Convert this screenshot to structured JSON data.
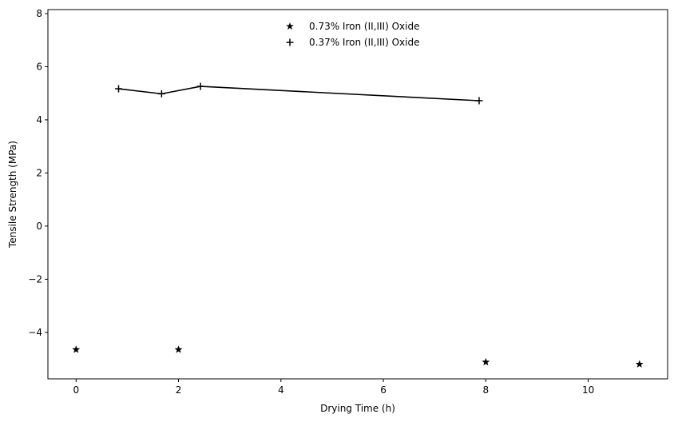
{
  "chart_data": {
    "type": "scatter",
    "xlabel": "Drying Time (h)",
    "ylabel": "Tensile Strength (MPa)",
    "xlim": [
      -0.55,
      11.55
    ],
    "ylim": [
      -5.75,
      8.15
    ],
    "xticks": [
      0,
      2,
      4,
      6,
      8,
      10
    ],
    "yticks": [
      -4,
      -2,
      0,
      2,
      4,
      6,
      8
    ],
    "xtick_labels": [
      "0",
      "2",
      "4",
      "6",
      "8",
      "10"
    ],
    "ytick_labels": [
      "−4",
      "−2",
      "0",
      "2",
      "4",
      "6",
      "8"
    ],
    "grid": false,
    "legend_position": "upper-center",
    "series": [
      {
        "name": "0.73% Iron (II,III) Oxide",
        "marker": "star",
        "line": false,
        "color": "#000000",
        "x": [
          0,
          2,
          8,
          11
        ],
        "y": [
          -4.65,
          -4.65,
          -5.12,
          -5.2
        ]
      },
      {
        "name": "0.37% Iron (II,III) Oxide",
        "marker": "plus",
        "line": true,
        "color": "#000000",
        "x": [
          0.83,
          1.67,
          2.43,
          7.87
        ],
        "y": [
          5.17,
          4.98,
          5.26,
          4.72
        ]
      }
    ]
  }
}
